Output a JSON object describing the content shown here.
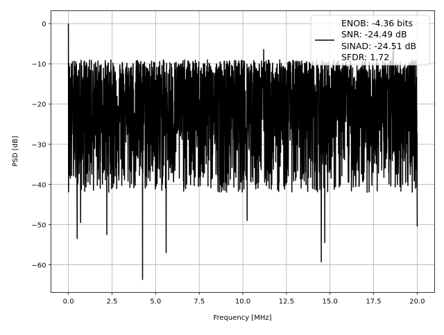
{
  "chart_data": {
    "type": "line",
    "title": "",
    "xlabel": "Frequency [MHz]",
    "ylabel": "PSD [dB]",
    "xlim": [
      -1.0,
      21.0
    ],
    "ylim": [
      -66.9,
      3.2
    ],
    "xticks": [
      0.0,
      2.5,
      5.0,
      7.5,
      10.0,
      12.5,
      15.0,
      17.5,
      20.0
    ],
    "xtick_labels": [
      "0.0",
      "2.5",
      "5.0",
      "7.5",
      "10.0",
      "12.5",
      "15.0",
      "17.5",
      "20.0"
    ],
    "yticks": [
      0,
      -10,
      -20,
      -30,
      -40,
      -50,
      -60
    ],
    "ytick_labels": [
      "0",
      "−10",
      "−20",
      "−30",
      "−40",
      "−50",
      "−60"
    ],
    "grid": true,
    "legend_placement": "upper-right",
    "series": [
      {
        "name": "ENOB: -4.36 bits\nSNR: -24.49 dB\nSINAD: -24.51 dB\nSFDR: 1.72",
        "color": "#000000",
        "x_range": [
          0.0,
          20.0
        ],
        "num_points": 2400,
        "noise_upper_dB": -9,
        "noise_lower_dB": -42,
        "noise_median_dB": -22,
        "features": [
          {
            "x": 0.0,
            "y": 0.0
          },
          {
            "x": 0.02,
            "y": -32
          },
          {
            "x": 0.5,
            "y": -53.5
          },
          {
            "x": 0.7,
            "y": -49.5
          },
          {
            "x": 2.2,
            "y": -52.5
          },
          {
            "x": 4.25,
            "y": -63.7
          },
          {
            "x": 5.6,
            "y": -57.0
          },
          {
            "x": 10.25,
            "y": -49.0
          },
          {
            "x": 14.5,
            "y": -59.3
          },
          {
            "x": 14.7,
            "y": -54.5
          },
          {
            "x": 18.6,
            "y": -7.0
          },
          {
            "x": 18.65,
            "y": -4.8
          },
          {
            "x": 11.2,
            "y": -6.5
          },
          {
            "x": 20.0,
            "y": -50.5
          }
        ]
      }
    ],
    "legend_lines": [
      "ENOB: -4.36 bits",
      "SNR: -24.49 dB",
      "SINAD: -24.51 dB",
      "SFDR: 1.72"
    ]
  }
}
